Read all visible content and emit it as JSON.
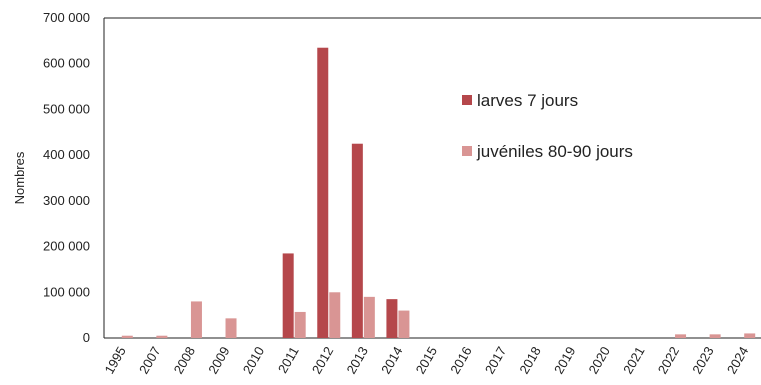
{
  "chart_data": {
    "type": "bar",
    "title": "",
    "xlabel": "",
    "ylabel": "Nombres",
    "ylim": [
      0,
      700000
    ],
    "yticks": [
      0,
      100000,
      200000,
      300000,
      400000,
      500000,
      600000,
      700000
    ],
    "ytick_labels": [
      "0",
      "100 000",
      "200 000",
      "300 000",
      "400 000",
      "500 000",
      "600 000",
      "700 000"
    ],
    "grid": false,
    "legend_position": "right",
    "categories": [
      "1995",
      "2007",
      "2008",
      "2009",
      "2010",
      "2011",
      "2012",
      "2013",
      "2014",
      "2015",
      "2016",
      "2017",
      "2018",
      "2019",
      "2020",
      "2021",
      "2022",
      "2023",
      "2024"
    ],
    "series": [
      {
        "name": "larves 7 jours",
        "color": "#b5474b",
        "values": [
          0,
          0,
          0,
          0,
          0,
          185000,
          635000,
          425000,
          85000,
          0,
          0,
          0,
          0,
          0,
          0,
          0,
          0,
          0,
          0
        ]
      },
      {
        "name": "juvéniles 80-90 jours",
        "color": "#d99594",
        "values": [
          5000,
          5000,
          80000,
          43000,
          0,
          57000,
          100000,
          90000,
          60000,
          0,
          0,
          0,
          0,
          0,
          0,
          0,
          8000,
          8000,
          10000
        ]
      }
    ]
  }
}
